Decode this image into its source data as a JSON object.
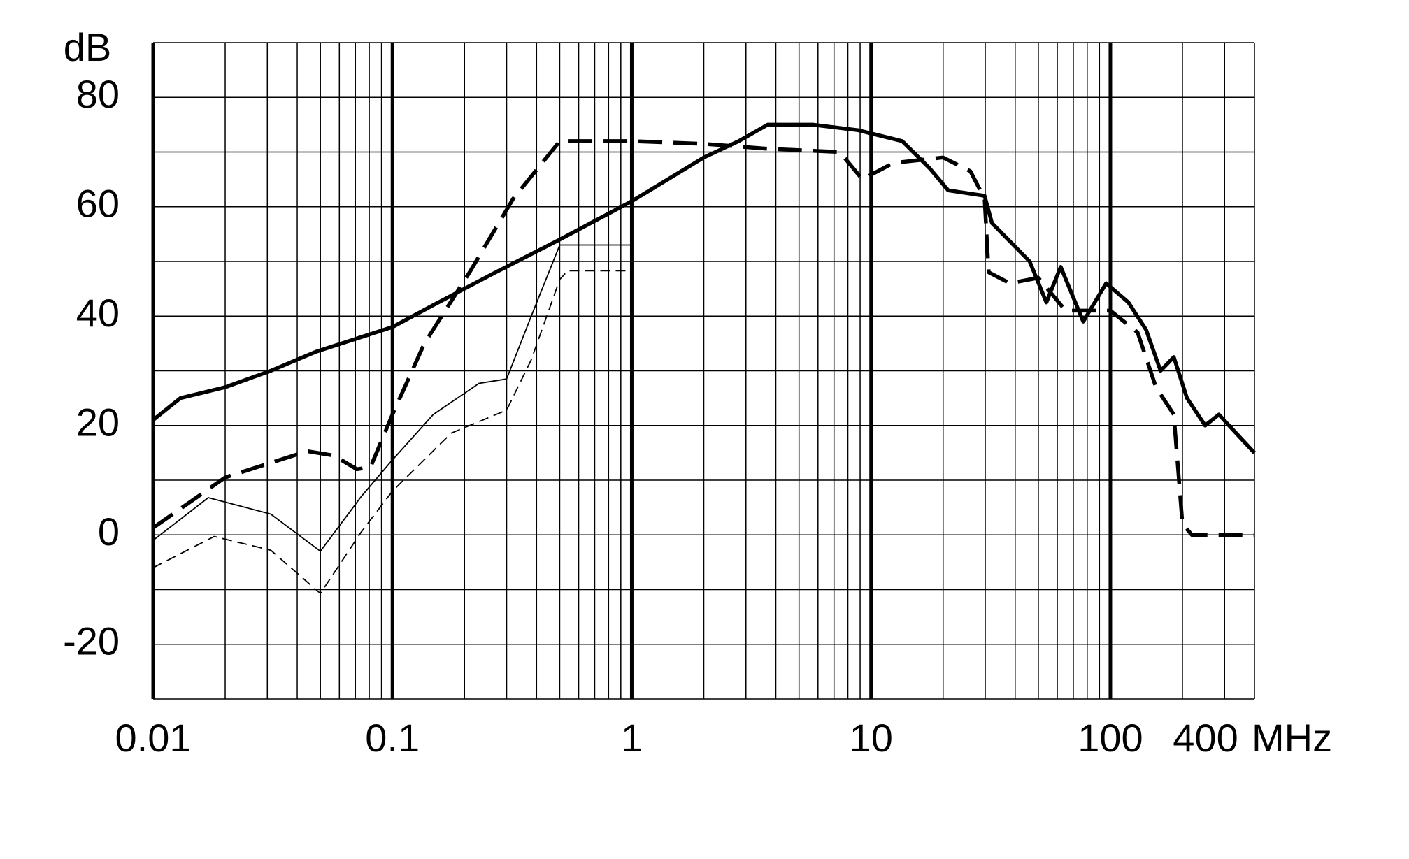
{
  "chart_data": {
    "type": "line",
    "x_label": "MHz",
    "y_label": "dB",
    "xscale": "log",
    "xlim": [
      0.01,
      400
    ],
    "xticks": [
      0.01,
      0.1,
      1,
      10,
      100,
      400
    ],
    "xgrid": [
      0.02,
      0.03,
      0.04,
      0.05,
      0.06,
      0.07,
      0.08,
      0.09,
      0.2,
      0.3,
      0.4,
      0.5,
      0.6,
      0.7,
      0.8,
      0.9,
      2,
      3,
      4,
      5,
      6,
      7,
      8,
      9,
      20,
      30,
      40,
      50,
      60,
      70,
      80,
      90,
      200,
      300
    ],
    "ylim": [
      -30,
      90
    ],
    "yticks": [
      -20,
      0,
      20,
      40,
      60,
      80
    ],
    "ygrid": [
      -30,
      -10,
      10,
      30,
      50,
      70,
      90
    ],
    "grid": true,
    "series": [
      {
        "color": "#000000",
        "line_style": "solid",
        "line_width": "thick",
        "x": [
          0.01,
          0.013,
          0.02,
          0.031,
          0.048,
          0.1,
          0.148,
          0.27,
          0.5,
          1,
          2,
          2.8,
          3.7,
          5.7,
          8.8,
          13.5,
          17.6,
          21,
          29.8,
          32,
          46,
          54,
          62,
          77,
          96,
          119,
          141,
          162,
          184,
          209,
          249,
          284,
          337,
          400
        ],
        "values": [
          21,
          25,
          27,
          30,
          33.5,
          38,
          42,
          48,
          54,
          61,
          69,
          72,
          75,
          75,
          74,
          72,
          67,
          63,
          62,
          57,
          50,
          42.5,
          49,
          39,
          46,
          42.5,
          37.5,
          30,
          32.5,
          25,
          20,
          22,
          18.5,
          15
        ]
      },
      {
        "color": "#000000",
        "line_style": "dashed",
        "line_width": "thick",
        "x": [
          0.01,
          0.02,
          0.044,
          0.057,
          0.071,
          0.081,
          0.1,
          0.136,
          0.21,
          0.32,
          0.5,
          1,
          2,
          3.7,
          7.4,
          9.2,
          12.4,
          20,
          26,
          29.8,
          31,
          38,
          50,
          65,
          100,
          130,
          155,
          184,
          200,
          219,
          400
        ],
        "values": [
          1.3,
          10.5,
          15.3,
          14.5,
          12,
          12.4,
          22,
          35,
          48,
          61.5,
          72,
          72,
          71.5,
          70.6,
          70,
          65,
          68,
          69,
          66.5,
          61.5,
          48,
          46,
          47,
          41,
          41,
          37,
          27,
          22,
          2,
          0,
          0
        ]
      },
      {
        "color": "#000000",
        "line_style": "solid",
        "line_width": "thin",
        "x": [
          0.01,
          0.017,
          0.031,
          0.05,
          0.074,
          0.1,
          0.148,
          0.23,
          0.3,
          0.38,
          0.5,
          1
        ],
        "values": [
          -1,
          6.8,
          3.8,
          -3,
          7,
          13.7,
          22,
          27.7,
          28.5,
          40,
          53,
          53
        ]
      },
      {
        "color": "#000000",
        "line_style": "dashed",
        "line_width": "thin",
        "x": [
          0.01,
          0.018,
          0.031,
          0.05,
          0.074,
          0.1,
          0.176,
          0.3,
          0.38,
          0.5,
          0.54,
          1
        ],
        "values": [
          -6,
          -0.3,
          -2.8,
          -10.7,
          0.5,
          8,
          18.6,
          22.8,
          32,
          46.7,
          48.3,
          48.3
        ]
      }
    ]
  }
}
